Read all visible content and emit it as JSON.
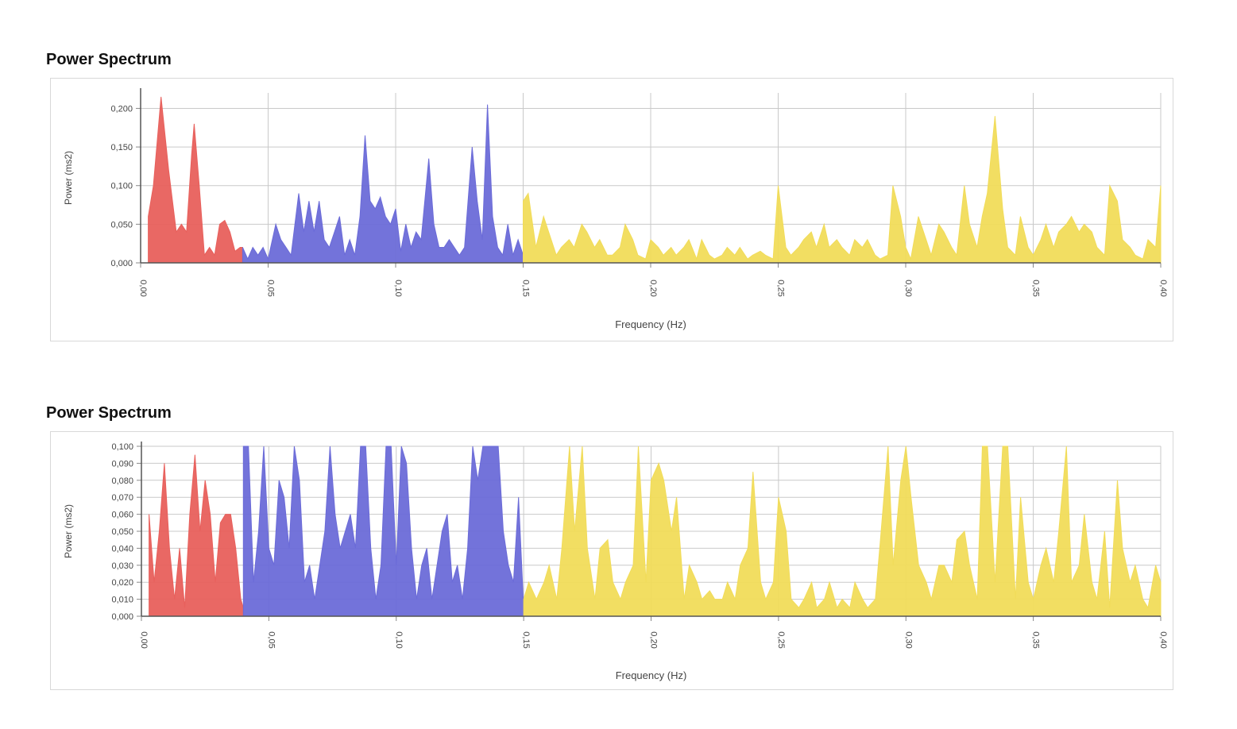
{
  "chart_data": [
    {
      "type": "area",
      "title": "Power Spectrum",
      "xlabel": "Frequency (Hz)",
      "ylabel": "Power (ms2)",
      "xlim": [
        0,
        0.4
      ],
      "ylim": [
        0,
        0.22
      ],
      "xticks": [
        "0,00",
        "0,05",
        "0,10",
        "0,15",
        "0,20",
        "0,25",
        "0,30",
        "0,35",
        "0,40"
      ],
      "yticks": [
        "0,000",
        "0,050",
        "0,100",
        "0,150",
        "0,200"
      ],
      "ytick_values": [
        0,
        0.05,
        0.1,
        0.15,
        0.2
      ],
      "grid": true,
      "series": [
        {
          "color": "#e8605c",
          "x": [
            0.003,
            0.005,
            0.008,
            0.011,
            0.014,
            0.016,
            0.018,
            0.02,
            0.021,
            0.023,
            0.025,
            0.027,
            0.029,
            0.031,
            0.033,
            0.035,
            0.037,
            0.039,
            0.04
          ],
          "y": [
            0.06,
            0.1,
            0.215,
            0.12,
            0.04,
            0.05,
            0.04,
            0.14,
            0.18,
            0.1,
            0.01,
            0.02,
            0.01,
            0.05,
            0.055,
            0.04,
            0.015,
            0.02,
            0.02
          ]
        },
        {
          "color": "#6b6bd8",
          "x": [
            0.04,
            0.042,
            0.044,
            0.046,
            0.048,
            0.05,
            0.053,
            0.055,
            0.057,
            0.059,
            0.062,
            0.064,
            0.066,
            0.068,
            0.07,
            0.072,
            0.074,
            0.076,
            0.078,
            0.08,
            0.082,
            0.084,
            0.086,
            0.088,
            0.09,
            0.092,
            0.094,
            0.096,
            0.098,
            0.1,
            0.102,
            0.104,
            0.106,
            0.108,
            0.11,
            0.113,
            0.115,
            0.117,
            0.119,
            0.121,
            0.123,
            0.125,
            0.127,
            0.13,
            0.132,
            0.134,
            0.136,
            0.138,
            0.14,
            0.142,
            0.144,
            0.146,
            0.148,
            0.15
          ],
          "y": [
            0.02,
            0.005,
            0.02,
            0.01,
            0.02,
            0.005,
            0.05,
            0.03,
            0.02,
            0.01,
            0.09,
            0.04,
            0.08,
            0.04,
            0.08,
            0.03,
            0.02,
            0.04,
            0.06,
            0.01,
            0.03,
            0.01,
            0.06,
            0.165,
            0.08,
            0.07,
            0.085,
            0.06,
            0.05,
            0.07,
            0.015,
            0.05,
            0.02,
            0.04,
            0.03,
            0.135,
            0.05,
            0.02,
            0.02,
            0.03,
            0.02,
            0.01,
            0.02,
            0.15,
            0.08,
            0.03,
            0.205,
            0.06,
            0.02,
            0.01,
            0.05,
            0.01,
            0.03,
            0.01
          ]
        },
        {
          "color": "#f1dc5a",
          "x": [
            0.15,
            0.152,
            0.155,
            0.158,
            0.16,
            0.163,
            0.165,
            0.168,
            0.17,
            0.173,
            0.175,
            0.178,
            0.18,
            0.183,
            0.185,
            0.188,
            0.19,
            0.193,
            0.195,
            0.198,
            0.2,
            0.203,
            0.205,
            0.208,
            0.21,
            0.213,
            0.215,
            0.218,
            0.22,
            0.223,
            0.225,
            0.228,
            0.23,
            0.233,
            0.235,
            0.238,
            0.24,
            0.243,
            0.245,
            0.248,
            0.25,
            0.253,
            0.255,
            0.258,
            0.26,
            0.263,
            0.265,
            0.268,
            0.27,
            0.273,
            0.275,
            0.278,
            0.28,
            0.283,
            0.285,
            0.288,
            0.29,
            0.293,
            0.295,
            0.298,
            0.3,
            0.302,
            0.305,
            0.308,
            0.31,
            0.313,
            0.315,
            0.318,
            0.32,
            0.323,
            0.325,
            0.328,
            0.33,
            0.332,
            0.335,
            0.338,
            0.34,
            0.343,
            0.345,
            0.348,
            0.35,
            0.353,
            0.355,
            0.358,
            0.36,
            0.363,
            0.365,
            0.368,
            0.37,
            0.373,
            0.375,
            0.378,
            0.38,
            0.383,
            0.385,
            0.388,
            0.39,
            0.393,
            0.395,
            0.398,
            0.4
          ],
          "y": [
            0.08,
            0.09,
            0.02,
            0.06,
            0.04,
            0.01,
            0.02,
            0.03,
            0.02,
            0.05,
            0.04,
            0.02,
            0.03,
            0.01,
            0.01,
            0.02,
            0.05,
            0.03,
            0.01,
            0.005,
            0.03,
            0.02,
            0.01,
            0.02,
            0.01,
            0.02,
            0.03,
            0.005,
            0.03,
            0.01,
            0.005,
            0.01,
            0.02,
            0.01,
            0.02,
            0.005,
            0.01,
            0.015,
            0.01,
            0.005,
            0.1,
            0.02,
            0.01,
            0.02,
            0.03,
            0.04,
            0.02,
            0.05,
            0.02,
            0.03,
            0.02,
            0.01,
            0.03,
            0.02,
            0.03,
            0.01,
            0.005,
            0.01,
            0.1,
            0.06,
            0.02,
            0.005,
            0.06,
            0.03,
            0.01,
            0.05,
            0.04,
            0.02,
            0.01,
            0.1,
            0.05,
            0.02,
            0.06,
            0.09,
            0.19,
            0.07,
            0.02,
            0.01,
            0.06,
            0.02,
            0.01,
            0.03,
            0.05,
            0.02,
            0.04,
            0.05,
            0.06,
            0.04,
            0.05,
            0.04,
            0.02,
            0.01,
            0.1,
            0.08,
            0.03,
            0.02,
            0.01,
            0.005,
            0.03,
            0.02,
            0.1
          ]
        }
      ]
    },
    {
      "type": "area",
      "title": "Power Spectrum",
      "xlabel": "Frequency (Hz)",
      "ylabel": "Power (ms2)",
      "xlim": [
        0,
        0.4
      ],
      "ylim": [
        0,
        0.1
      ],
      "xticks": [
        "0,00",
        "0,05",
        "0,10",
        "0,15",
        "0,20",
        "0,25",
        "0,30",
        "0,35",
        "0,40"
      ],
      "yticks": [
        "0,000",
        "0,010",
        "0,020",
        "0,030",
        "0,040",
        "0,050",
        "0,060",
        "0,070",
        "0,080",
        "0,090",
        "0,100"
      ],
      "ytick_values": [
        0,
        0.01,
        0.02,
        0.03,
        0.04,
        0.05,
        0.06,
        0.07,
        0.08,
        0.09,
        0.1
      ],
      "grid": true,
      "series": [
        {
          "color": "#e8605c",
          "x": [
            0.003,
            0.005,
            0.007,
            0.009,
            0.011,
            0.013,
            0.015,
            0.017,
            0.019,
            0.021,
            0.023,
            0.025,
            0.027,
            0.029,
            0.031,
            0.033,
            0.035,
            0.037,
            0.039,
            0.04
          ],
          "y": [
            0.06,
            0.02,
            0.05,
            0.09,
            0.04,
            0.01,
            0.04,
            0.005,
            0.06,
            0.095,
            0.05,
            0.08,
            0.06,
            0.02,
            0.055,
            0.06,
            0.06,
            0.04,
            0.01,
            0.005
          ]
        },
        {
          "color": "#6b6bd8",
          "x": [
            0.04,
            0.042,
            0.044,
            0.046,
            0.048,
            0.05,
            0.052,
            0.054,
            0.056,
            0.058,
            0.06,
            0.062,
            0.064,
            0.066,
            0.068,
            0.07,
            0.072,
            0.074,
            0.076,
            0.078,
            0.08,
            0.082,
            0.084,
            0.086,
            0.088,
            0.09,
            0.092,
            0.094,
            0.096,
            0.098,
            0.1,
            0.102,
            0.104,
            0.106,
            0.108,
            0.11,
            0.112,
            0.114,
            0.116,
            0.118,
            0.12,
            0.122,
            0.124,
            0.126,
            0.128,
            0.13,
            0.132,
            0.134,
            0.136,
            0.138,
            0.14,
            0.142,
            0.144,
            0.146,
            0.148,
            0.15
          ],
          "y": [
            0.1,
            0.1,
            0.02,
            0.05,
            0.1,
            0.04,
            0.03,
            0.08,
            0.07,
            0.04,
            0.1,
            0.08,
            0.02,
            0.03,
            0.01,
            0.03,
            0.05,
            0.1,
            0.06,
            0.04,
            0.05,
            0.06,
            0.04,
            0.1,
            0.1,
            0.04,
            0.01,
            0.03,
            0.1,
            0.1,
            0.03,
            0.1,
            0.09,
            0.04,
            0.01,
            0.03,
            0.04,
            0.01,
            0.03,
            0.05,
            0.06,
            0.02,
            0.03,
            0.01,
            0.04,
            0.1,
            0.08,
            0.1,
            0.1,
            0.1,
            0.1,
            0.05,
            0.03,
            0.02,
            0.07,
            0.005
          ]
        },
        {
          "color": "#f1dc5a",
          "x": [
            0.15,
            0.152,
            0.155,
            0.158,
            0.16,
            0.163,
            0.165,
            0.168,
            0.17,
            0.173,
            0.175,
            0.178,
            0.18,
            0.183,
            0.185,
            0.188,
            0.19,
            0.193,
            0.195,
            0.198,
            0.2,
            0.203,
            0.205,
            0.208,
            0.21,
            0.213,
            0.215,
            0.218,
            0.22,
            0.223,
            0.225,
            0.228,
            0.23,
            0.233,
            0.235,
            0.238,
            0.24,
            0.243,
            0.245,
            0.248,
            0.25,
            0.253,
            0.255,
            0.258,
            0.26,
            0.263,
            0.265,
            0.268,
            0.27,
            0.273,
            0.275,
            0.278,
            0.28,
            0.283,
            0.285,
            0.288,
            0.29,
            0.293,
            0.295,
            0.298,
            0.3,
            0.302,
            0.305,
            0.308,
            0.31,
            0.313,
            0.315,
            0.318,
            0.32,
            0.323,
            0.325,
            0.328,
            0.33,
            0.332,
            0.335,
            0.338,
            0.34,
            0.343,
            0.345,
            0.348,
            0.35,
            0.353,
            0.355,
            0.358,
            0.36,
            0.363,
            0.365,
            0.368,
            0.37,
            0.373,
            0.375,
            0.378,
            0.38,
            0.383,
            0.385,
            0.388,
            0.39,
            0.393,
            0.395,
            0.398,
            0.4
          ],
          "y": [
            0.01,
            0.02,
            0.01,
            0.02,
            0.03,
            0.01,
            0.04,
            0.1,
            0.05,
            0.1,
            0.04,
            0.01,
            0.04,
            0.045,
            0.02,
            0.01,
            0.02,
            0.03,
            0.1,
            0.02,
            0.08,
            0.09,
            0.08,
            0.05,
            0.07,
            0.01,
            0.03,
            0.02,
            0.01,
            0.015,
            0.01,
            0.01,
            0.02,
            0.01,
            0.03,
            0.04,
            0.085,
            0.02,
            0.01,
            0.02,
            0.07,
            0.05,
            0.01,
            0.005,
            0.01,
            0.02,
            0.005,
            0.01,
            0.02,
            0.005,
            0.01,
            0.005,
            0.02,
            0.01,
            0.005,
            0.01,
            0.045,
            0.1,
            0.03,
            0.08,
            0.1,
            0.07,
            0.03,
            0.02,
            0.01,
            0.03,
            0.03,
            0.02,
            0.045,
            0.05,
            0.03,
            0.01,
            0.1,
            0.1,
            0.02,
            0.1,
            0.1,
            0.01,
            0.07,
            0.02,
            0.01,
            0.03,
            0.04,
            0.02,
            0.05,
            0.1,
            0.02,
            0.03,
            0.06,
            0.02,
            0.01,
            0.05,
            0.005,
            0.08,
            0.04,
            0.02,
            0.03,
            0.01,
            0.005,
            0.03,
            0.02
          ]
        }
      ]
    }
  ]
}
